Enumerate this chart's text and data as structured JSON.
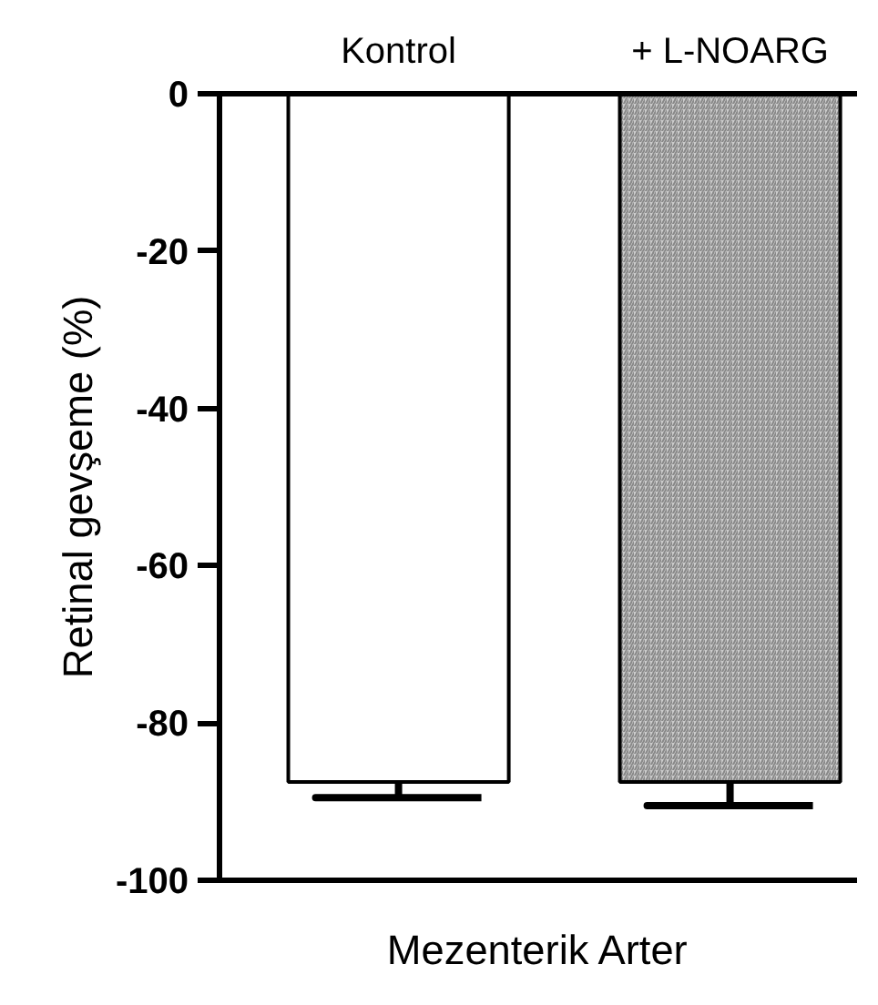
{
  "chart_data": {
    "type": "bar",
    "categories": [
      "Kontrol",
      "+ L-NOARG"
    ],
    "values": [
      -87.5,
      -87.5
    ],
    "colors": [
      "#ffffff",
      "#cccccc"
    ],
    "errors": [
      2,
      3
    ],
    "xlabel": "Mezenterik Arter",
    "ylabel": "Retinal gevşeme (%)",
    "ylim": [
      -100,
      0
    ],
    "yticks": [
      0,
      -20,
      -40,
      -60,
      -80,
      -100
    ],
    "grid": false
  }
}
